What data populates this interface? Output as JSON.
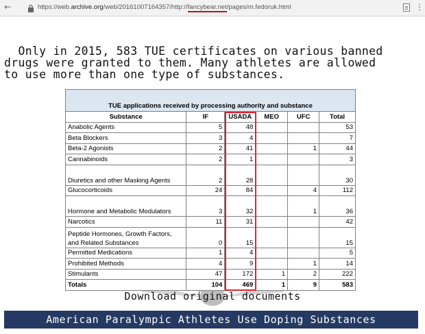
{
  "browser": {
    "back_glyph": "←",
    "url_prefix": "https://web.",
    "url_domain": "archive.org",
    "url_middle": "/web/20161007164357/http://",
    "url_highlight": "fancybear.net",
    "url_suffix": "/pages/m.fedoruk.html",
    "menu_glyph": "⋮"
  },
  "headline": {
    "line1": "  Only in 2015, 583 TUE certificates on various banned",
    "line2": "drugs were granted to them. Many athletes are allowed",
    "line3": "to use more than one type of substances."
  },
  "table": {
    "caption": "TUE applications received by processing authority and substance",
    "headers": [
      "Substance",
      "IF",
      "USADA",
      "MEO",
      "UFC",
      "Total"
    ],
    "rows": [
      {
        "substance": "Anabolic Agents",
        "if": "5",
        "usada": "48",
        "meo": "",
        "ufc": "",
        "total": "53"
      },
      {
        "substance": "Beta Blockers",
        "if": "3",
        "usada": "4",
        "meo": "",
        "ufc": "",
        "total": "7"
      },
      {
        "substance": "Beta-2 Agonists",
        "if": "2",
        "usada": "41",
        "meo": "",
        "ufc": "1",
        "total": "44"
      },
      {
        "substance": "Cannabinoids",
        "if": "2",
        "usada": "1",
        "meo": "",
        "ufc": "",
        "total": "3"
      },
      {
        "substance": "Diuretics and other Masking Agents",
        "if": "2",
        "usada": "28",
        "meo": "",
        "ufc": "",
        "total": "30"
      },
      {
        "substance": "Glucocorticoids",
        "if": "24",
        "usada": "84",
        "meo": "",
        "ufc": "4",
        "total": "112"
      },
      {
        "substance": "Hormone and Metabolic Modulators",
        "if": "3",
        "usada": "32",
        "meo": "",
        "ufc": "1",
        "total": "36"
      },
      {
        "substance": "Narcotics",
        "if": "11",
        "usada": "31",
        "meo": "",
        "ufc": "",
        "total": "42"
      },
      {
        "substance_line1": "Peptide Hormones, Growth Factors,",
        "substance_line2": "and Related Substances",
        "if": "0",
        "usada": "15",
        "meo": "",
        "ufc": "",
        "total": "15"
      },
      {
        "substance": "Permitted Medications",
        "if": "1",
        "usada": "4",
        "meo": "",
        "ufc": "",
        "total": "5"
      },
      {
        "substance": "Prohibited Methods",
        "if": "4",
        "usada": "9",
        "meo": "",
        "ufc": "1",
        "total": "14"
      },
      {
        "substance": "Stimulants",
        "if": "47",
        "usada": "172",
        "meo": "1",
        "ufc": "2",
        "total": "222"
      }
    ],
    "totals": {
      "label": "Totals",
      "if": "104",
      "usada": "469",
      "meo": "1",
      "ufc": "9",
      "total": "583"
    }
  },
  "download_label": "Download original documents",
  "banner_text": "American Paralympic Athletes Use Doping Substances",
  "colors": {
    "banner": "#253a63",
    "highlight": "#e8202a",
    "caption_fill": "#dce6f1"
  }
}
